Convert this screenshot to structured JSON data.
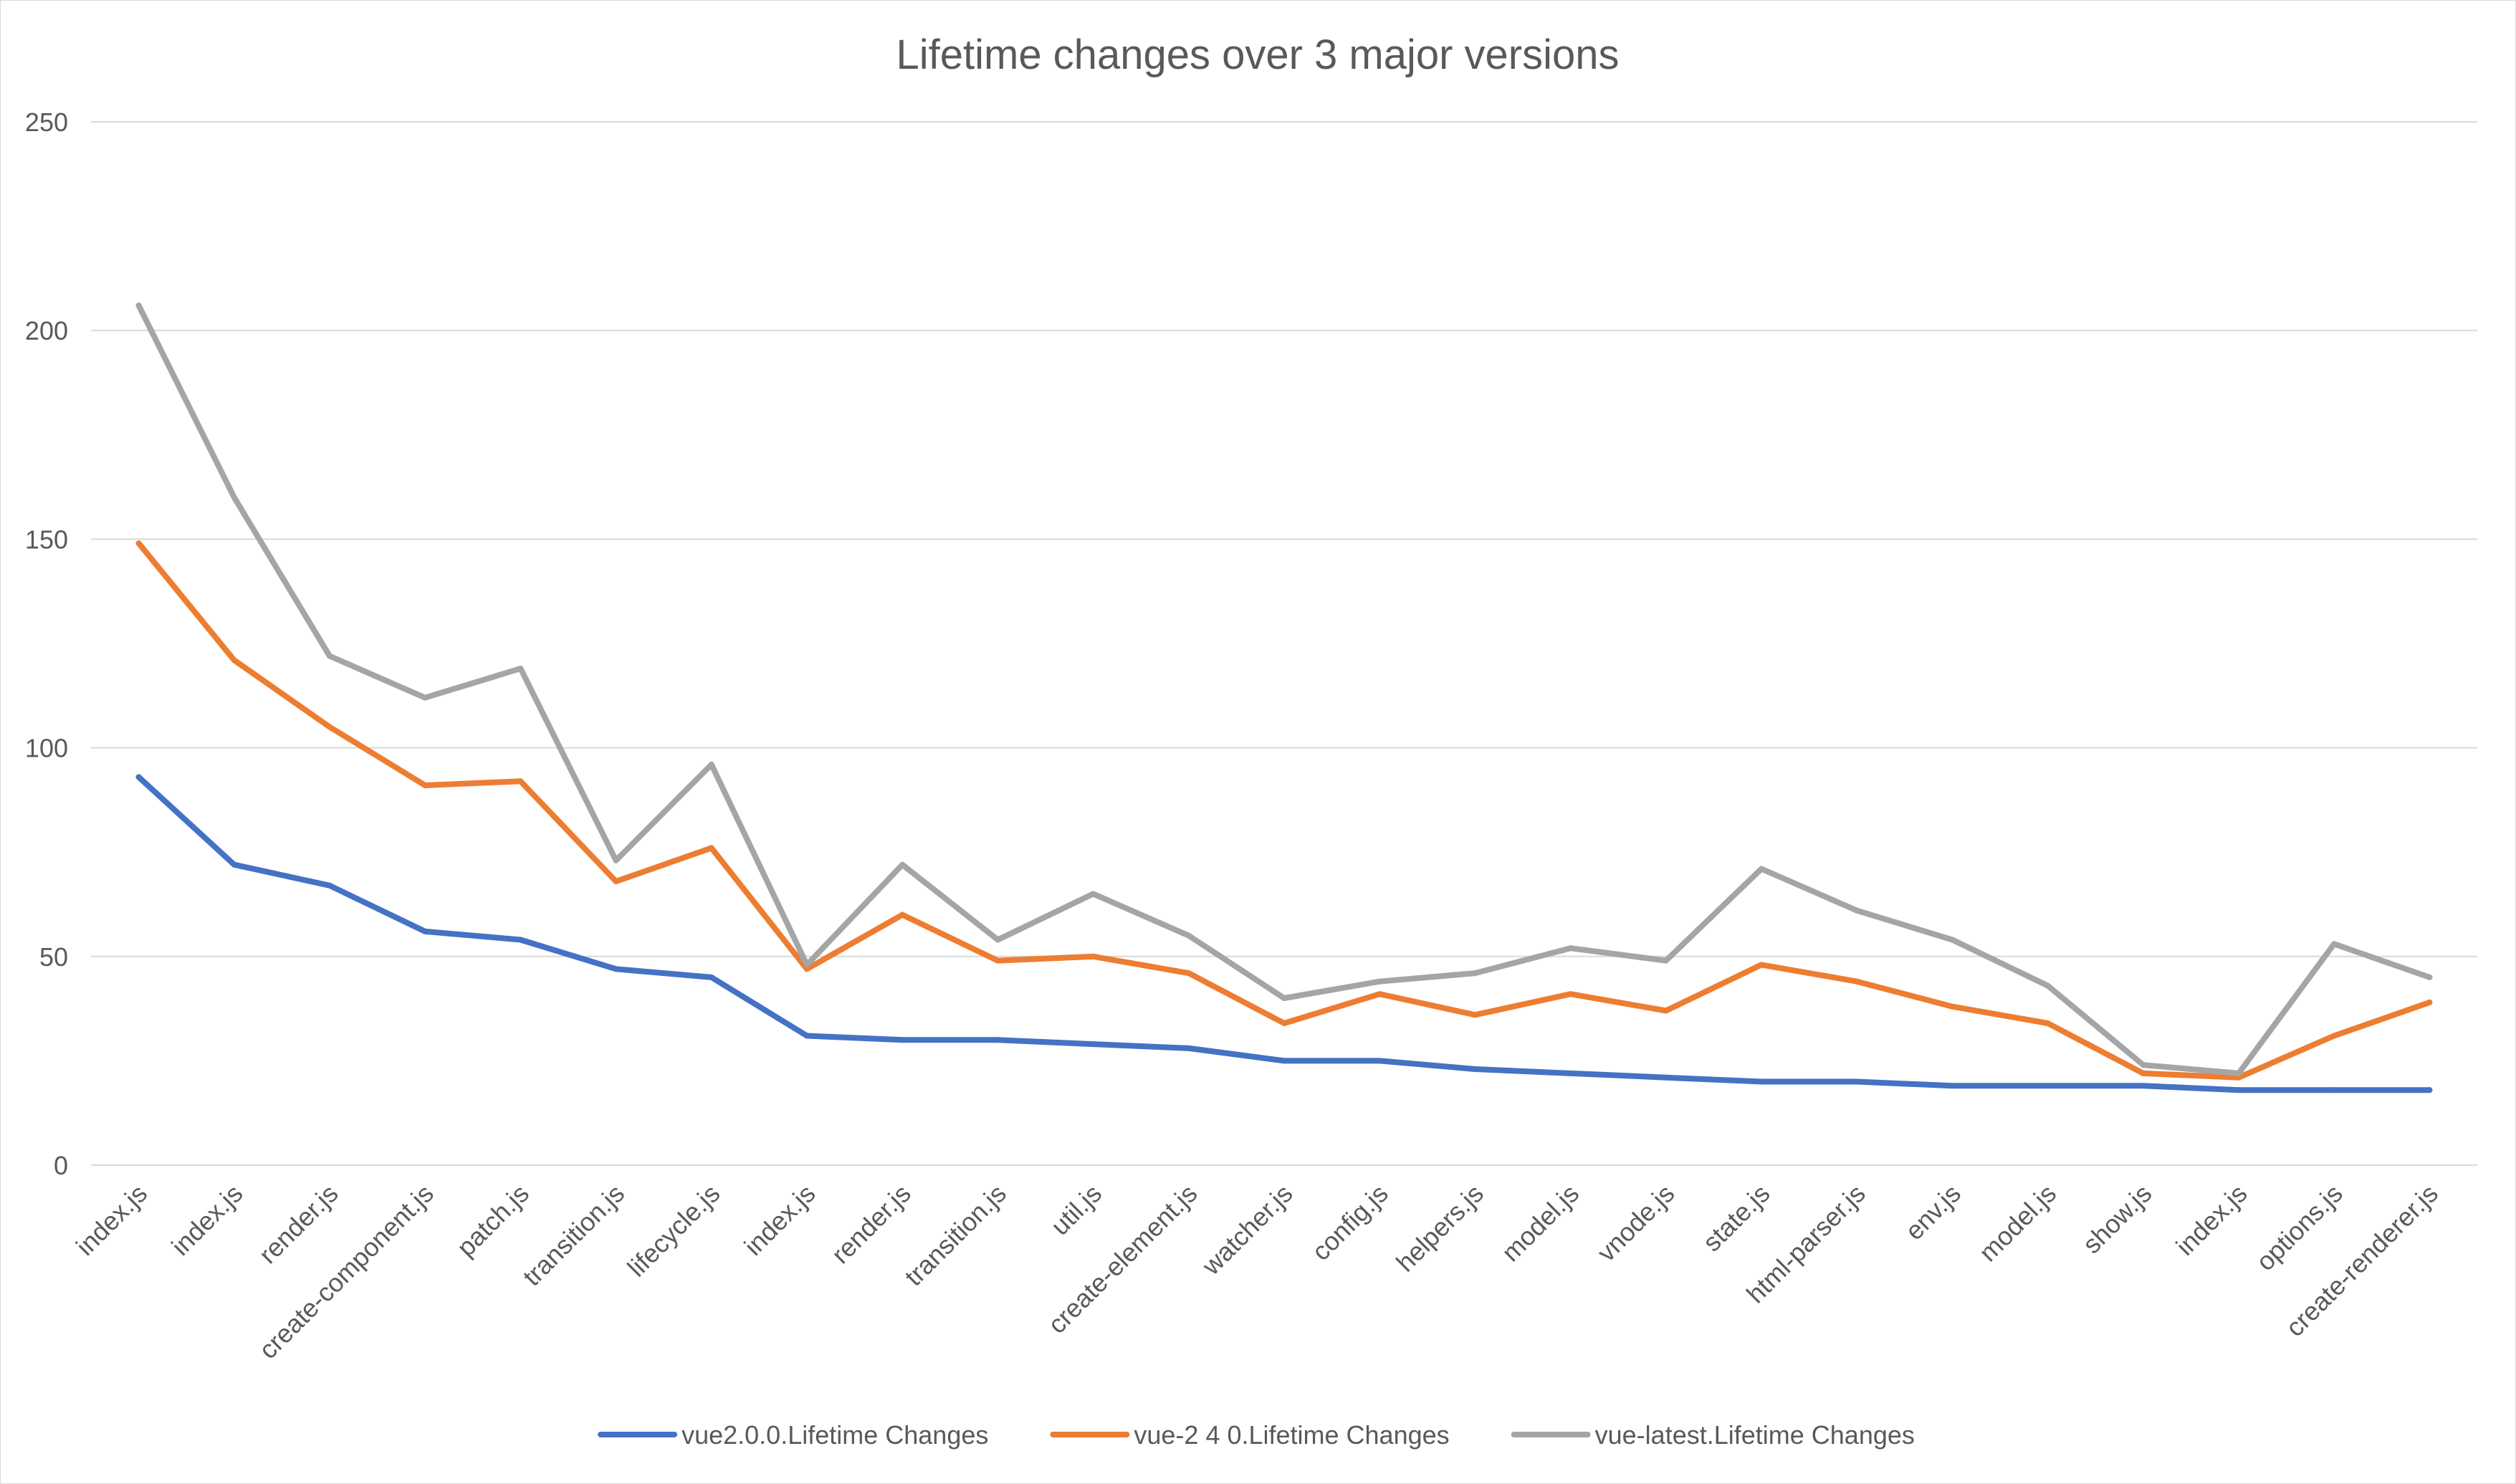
{
  "chart_data": {
    "type": "line",
    "title": "Lifetime changes over 3 major versions",
    "xlabel": "",
    "ylabel": "",
    "ylim": [
      0,
      250
    ],
    "yticks": [
      0,
      50,
      100,
      150,
      200,
      250
    ],
    "grid": true,
    "legend_position": "bottom",
    "categories": [
      "index.js",
      "index.js",
      "render.js",
      "create-component.js",
      "patch.js",
      "transition.js",
      "lifecycle.js",
      "index.js",
      "render.js",
      "transition.js",
      "util.js",
      "create-element.js",
      "watcher.js",
      "config.js",
      "helpers.js",
      "model.js",
      "vnode.js",
      "state.js",
      "html-parser.js",
      "env.js",
      "model.js",
      "show.js",
      "index.js",
      "options.js",
      "create-renderer.js"
    ],
    "series": [
      {
        "name": "vue2.0.0.Lifetime Changes",
        "color": "#4472C4",
        "values": [
          93,
          72,
          67,
          56,
          54,
          47,
          45,
          31,
          30,
          30,
          29,
          28,
          25,
          25,
          23,
          22,
          21,
          20,
          20,
          19,
          19,
          19,
          18,
          18,
          18
        ]
      },
      {
        "name": "vue-2 4 0.Lifetime Changes",
        "color": "#ED7D31",
        "values": [
          149,
          121,
          105,
          91,
          92,
          68,
          76,
          47,
          60,
          49,
          50,
          46,
          34,
          41,
          36,
          41,
          37,
          48,
          44,
          38,
          34,
          22,
          21,
          31,
          39
        ]
      },
      {
        "name": "vue-latest.Lifetime Changes",
        "color": "#A5A5A5",
        "values": [
          206,
          160,
          122,
          112,
          119,
          73,
          96,
          48,
          72,
          54,
          65,
          55,
          40,
          44,
          46,
          52,
          49,
          71,
          61,
          54,
          43,
          24,
          22,
          53,
          45
        ]
      }
    ]
  }
}
